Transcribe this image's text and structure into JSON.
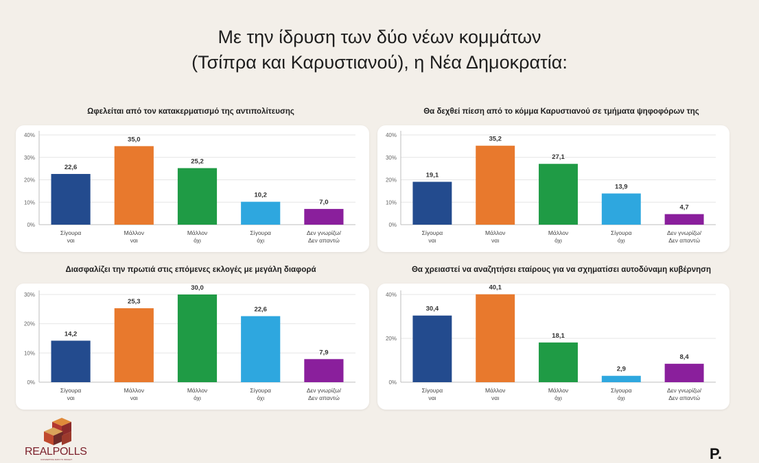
{
  "page": {
    "title_line1": "Με την ίδρυση των δύο νέων κομμάτων",
    "title_line2": "(Τσίπρα και Καρυστιανού), η Νέα Δημοκρατία:"
  },
  "logos": {
    "left": "REALPOLLS",
    "left_tagline": "CONVERTING DATA TO INSIGHT",
    "right": "P."
  },
  "colors": {
    "sigoura_nai": "#234b8e",
    "mallon_nai": "#e8792d",
    "mallon_ochi": "#1f9b45",
    "sigoura_ochi": "#2ea7df",
    "den_gnorizo": "#8a1f9c"
  },
  "chart_data": [
    {
      "type": "bar",
      "title": "Ωφελείται από τον κατακερματισμό της αντιπολίτευσης",
      "categories": [
        [
          "Σίγουρα",
          "ναι"
        ],
        [
          "Μάλλον",
          "ναι"
        ],
        [
          "Μάλλον",
          "όχι"
        ],
        [
          "Σίγουρα",
          "όχι"
        ],
        [
          "Δεν γνωρίζω/",
          "Δεν απαντώ"
        ]
      ],
      "values": [
        22.6,
        35.0,
        25.2,
        10.2,
        7.0
      ],
      "labels": [
        "22,6",
        "35,0",
        "25,2",
        "10,2",
        "7,0"
      ],
      "ylim": [
        0,
        40
      ],
      "yticks": [
        "0%",
        "10%",
        "20%",
        "30%",
        "40%"
      ],
      "grid": true
    },
    {
      "type": "bar",
      "title": "Θα δεχθεί πίεση από το κόμμα Καρυστιανού σε τμήματα ψηφοφόρων της",
      "categories": [
        [
          "Σίγουρα",
          "ναι"
        ],
        [
          "Μάλλον",
          "ναι"
        ],
        [
          "Μάλλον",
          "όχι"
        ],
        [
          "Σίγουρα",
          "όχι"
        ],
        [
          "Δεν γνωρίζω/",
          "Δεν απαντώ"
        ]
      ],
      "values": [
        19.1,
        35.2,
        27.1,
        13.9,
        4.7
      ],
      "labels": [
        "19,1",
        "35,2",
        "27,1",
        "13,9",
        "4,7"
      ],
      "ylim": [
        0,
        40
      ],
      "yticks": [
        "0%",
        "10%",
        "20%",
        "30%",
        "40%"
      ],
      "grid": true
    },
    {
      "type": "bar",
      "title": "Διασφαλίζει την πρωτιά στις επόμενες εκλογές με μεγάλη διαφορά",
      "categories": [
        [
          "Σίγουρα",
          "ναι"
        ],
        [
          "Μάλλον",
          "ναι"
        ],
        [
          "Μάλλον",
          "όχι"
        ],
        [
          "Σίγουρα",
          "όχι"
        ],
        [
          "Δεν γνωρίζω/",
          "Δεν απαντώ"
        ]
      ],
      "values": [
        14.2,
        25.3,
        30.0,
        22.6,
        7.9
      ],
      "labels": [
        "14,2",
        "25,3",
        "30,0",
        "22,6",
        "7,9"
      ],
      "ylim": [
        0,
        30
      ],
      "yticks": [
        "0%",
        "10%",
        "20%",
        "30%"
      ],
      "grid": true
    },
    {
      "type": "bar",
      "title": "Θα χρειαστεί να αναζητήσει εταίρους για να σχηματίσει αυτοδύναμη κυβέρνηση",
      "categories": [
        [
          "Σίγουρα",
          "ναι"
        ],
        [
          "Μάλλον",
          "ναι"
        ],
        [
          "Μάλλον",
          "όχι"
        ],
        [
          "Σίγουρα",
          "όχι"
        ],
        [
          "Δεν γνωρίζω/",
          "Δεν απαντώ"
        ]
      ],
      "values": [
        30.4,
        40.1,
        18.1,
        2.9,
        8.4
      ],
      "labels": [
        "30,4",
        "40,1",
        "18,1",
        "2,9",
        "8,4"
      ],
      "ylim": [
        0,
        40
      ],
      "yticks": [
        "0%",
        "20%",
        "40%"
      ],
      "grid": true
    }
  ]
}
